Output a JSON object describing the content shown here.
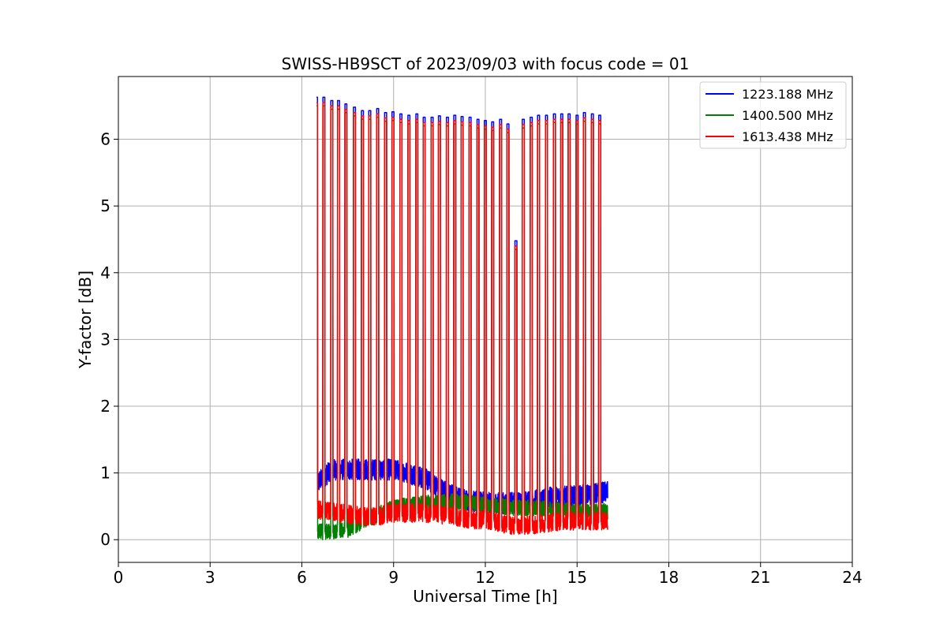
{
  "chart_data": {
    "type": "line",
    "title": "SWISS-HB9SCT of 2023/09/03 with focus code = 01",
    "xlabel": "Universal Time [h]",
    "ylabel": "Y-factor [dB]",
    "xlim": [
      0,
      24
    ],
    "ylim": [
      -0.34,
      6.94
    ],
    "x_ticks": [
      0,
      3,
      6,
      9,
      12,
      15,
      18,
      21,
      24
    ],
    "y_ticks": [
      0,
      1,
      2,
      3,
      4,
      5,
      6
    ],
    "grid": true,
    "legend_position": "top-right",
    "x_range_observed": [
      6.48,
      16.0
    ],
    "spike_times": [
      6.48,
      6.72,
      6.98,
      7.2,
      7.44,
      7.72,
      7.98,
      8.22,
      8.48,
      8.74,
      8.98,
      9.24,
      9.5,
      9.76,
      10.0,
      10.26,
      10.5,
      10.76,
      11.0,
      11.24,
      11.5,
      11.76,
      12.0,
      12.24,
      12.5,
      12.74,
      13.0,
      13.24,
      13.5,
      13.74,
      14.0,
      14.26,
      14.5,
      14.74,
      15.0,
      15.24,
      15.5,
      15.74
    ],
    "spike_peaks_dB": [
      6.55,
      6.55,
      6.5,
      6.5,
      6.45,
      6.4,
      6.35,
      6.35,
      6.38,
      6.32,
      6.33,
      6.3,
      6.28,
      6.3,
      6.25,
      6.25,
      6.27,
      6.25,
      6.28,
      6.26,
      6.25,
      6.22,
      6.2,
      6.18,
      6.22,
      6.15,
      4.4,
      6.22,
      6.25,
      6.28,
      6.28,
      6.3,
      6.3,
      6.3,
      6.28,
      6.32,
      6.3,
      6.28
    ],
    "series": [
      {
        "name": "1223.188 MHz",
        "color": "#0000ff",
        "baseline_dB": [
          [
            6.5,
            0.85
          ],
          [
            7.0,
            1.05
          ],
          [
            7.5,
            1.05
          ],
          [
            8.0,
            1.05
          ],
          [
            8.5,
            1.05
          ],
          [
            9.0,
            1.05
          ],
          [
            9.5,
            1.0
          ],
          [
            10.0,
            0.92
          ],
          [
            10.5,
            0.78
          ],
          [
            11.0,
            0.65
          ],
          [
            11.5,
            0.58
          ],
          [
            12.0,
            0.55
          ],
          [
            12.5,
            0.55
          ],
          [
            13.0,
            0.55
          ],
          [
            13.5,
            0.58
          ],
          [
            14.0,
            0.62
          ],
          [
            14.5,
            0.65
          ],
          [
            15.0,
            0.65
          ],
          [
            15.5,
            0.68
          ],
          [
            16.0,
            0.72
          ]
        ],
        "noise_amplitude_dB": 0.16
      },
      {
        "name": "1400.500 MHz",
        "color": "#008000",
        "baseline_dB": [
          [
            6.5,
            0.12
          ],
          [
            7.0,
            0.12
          ],
          [
            7.5,
            0.15
          ],
          [
            8.0,
            0.28
          ],
          [
            8.5,
            0.38
          ],
          [
            9.0,
            0.48
          ],
          [
            9.5,
            0.52
          ],
          [
            10.0,
            0.55
          ],
          [
            10.5,
            0.55
          ],
          [
            11.0,
            0.57
          ],
          [
            11.5,
            0.55
          ],
          [
            12.0,
            0.52
          ],
          [
            12.5,
            0.5
          ],
          [
            13.0,
            0.48
          ],
          [
            13.5,
            0.47
          ],
          [
            14.0,
            0.46
          ],
          [
            14.5,
            0.45
          ],
          [
            15.0,
            0.42
          ],
          [
            15.5,
            0.42
          ],
          [
            16.0,
            0.42
          ]
        ],
        "noise_amplitude_dB": 0.12
      },
      {
        "name": "1613.438 MHz",
        "color": "#ff0000",
        "baseline_dB": [
          [
            6.5,
            0.45
          ],
          [
            7.0,
            0.42
          ],
          [
            7.5,
            0.38
          ],
          [
            8.0,
            0.35
          ],
          [
            8.5,
            0.35
          ],
          [
            9.0,
            0.4
          ],
          [
            9.5,
            0.4
          ],
          [
            10.0,
            0.4
          ],
          [
            10.5,
            0.38
          ],
          [
            11.0,
            0.35
          ],
          [
            11.5,
            0.3
          ],
          [
            12.0,
            0.3
          ],
          [
            12.5,
            0.25
          ],
          [
            13.0,
            0.2
          ],
          [
            13.5,
            0.22
          ],
          [
            14.0,
            0.25
          ],
          [
            14.5,
            0.28
          ],
          [
            15.0,
            0.28
          ],
          [
            15.5,
            0.28
          ],
          [
            16.0,
            0.28
          ]
        ],
        "noise_amplitude_dB": 0.14
      }
    ]
  }
}
